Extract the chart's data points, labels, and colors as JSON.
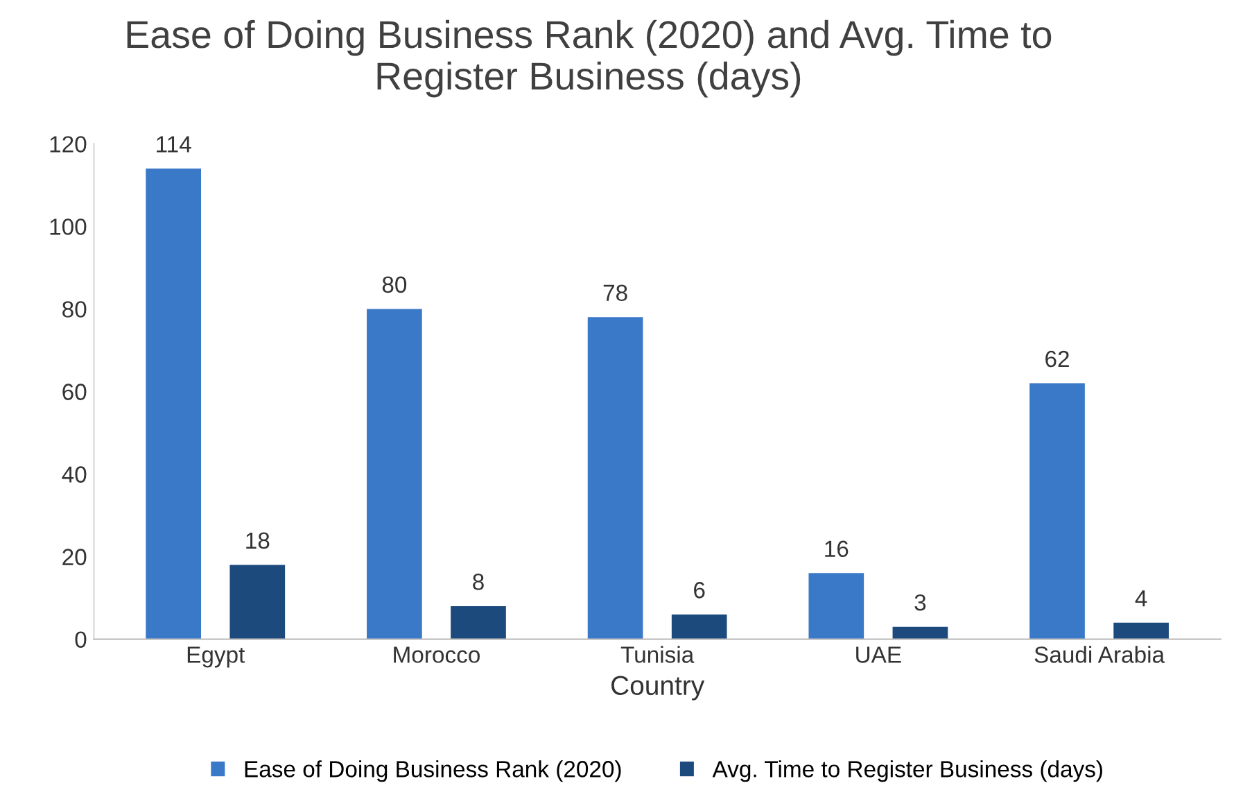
{
  "chart_data": {
    "type": "bar",
    "title": "Ease of Doing Business Rank (2020) and Avg. Time to\nRegister Business (days)",
    "xlabel": "Country",
    "categories": [
      "Egypt",
      "Morocco",
      "Tunisia",
      "UAE",
      "Saudi Arabia"
    ],
    "series": [
      {
        "name": "Ease of Doing Business Rank (2020)",
        "color": "#3a78c8",
        "values": [
          114,
          80,
          78,
          16,
          62
        ]
      },
      {
        "name": "Avg. Time to Register Business (days)",
        "color": "#1d4a7c",
        "values": [
          18,
          8,
          6,
          3,
          4
        ]
      }
    ],
    "ylim": [
      0,
      120
    ],
    "yticks": [
      0,
      20,
      40,
      60,
      80,
      100,
      120
    ],
    "data_labels": true,
    "legend": "bottom",
    "grid": false
  }
}
